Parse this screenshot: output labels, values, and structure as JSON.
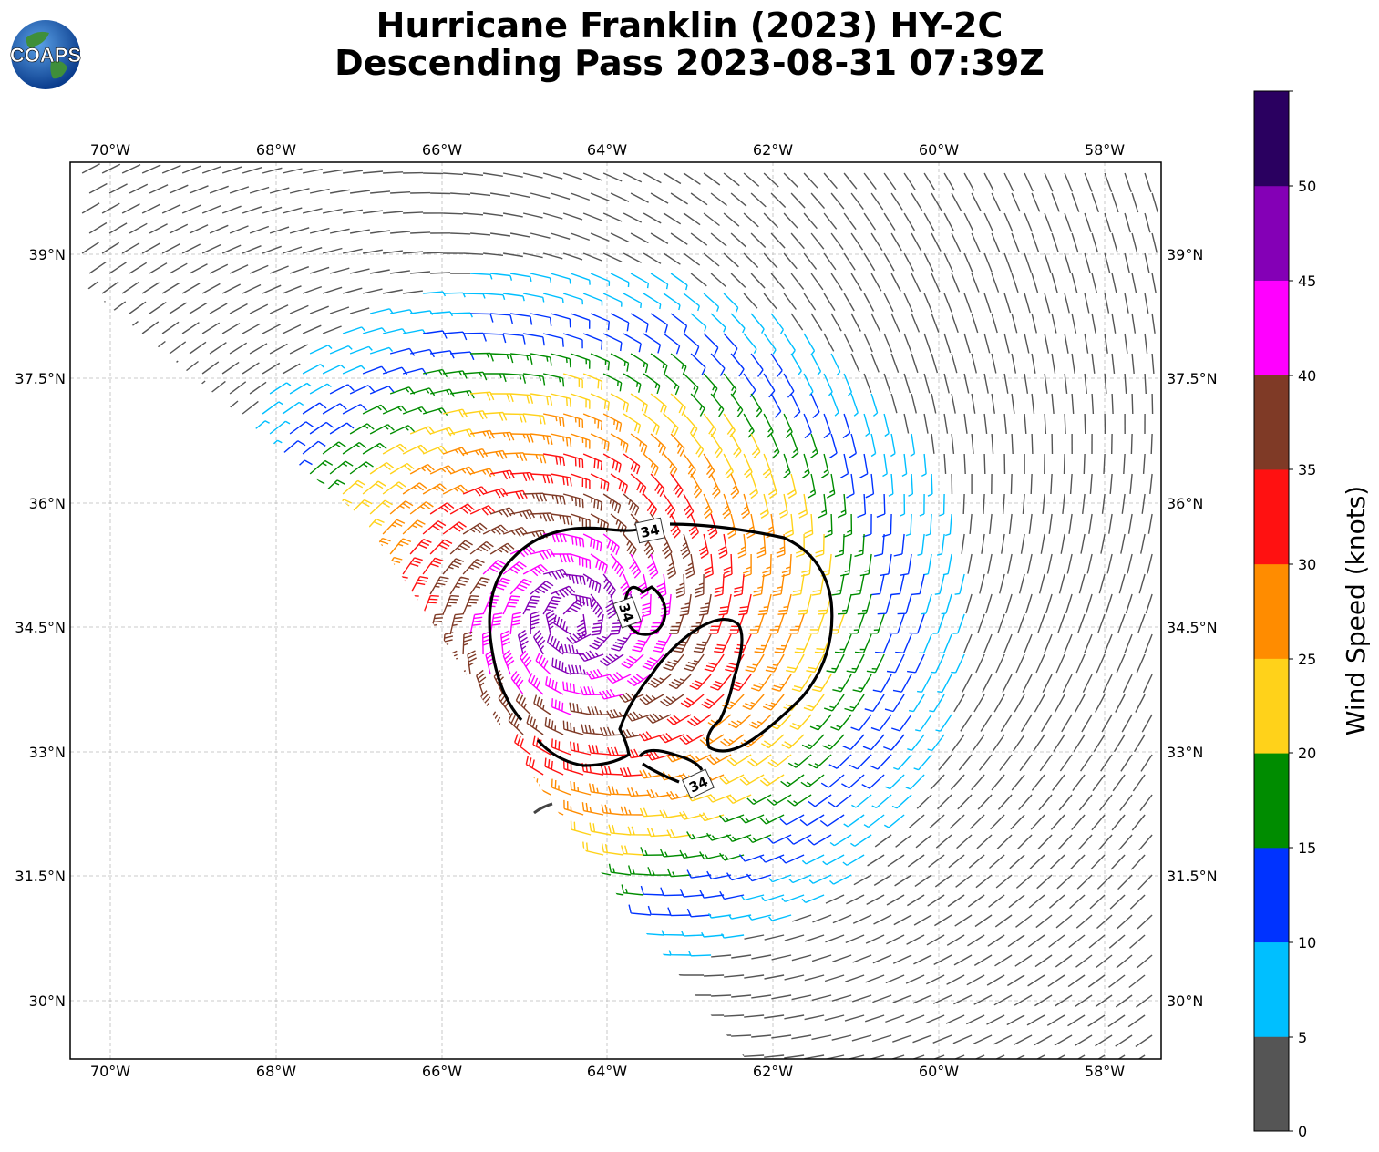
{
  "title": {
    "line1": "Hurricane Franklin (2023) HY-2C",
    "line2": "Descending Pass 2023-08-31 07:39Z"
  },
  "logo": {
    "text": "COAPS",
    "icon": "globe-logo-icon"
  },
  "map": {
    "lon_ticks": [
      "70°W",
      "68°W",
      "66°W",
      "64°W",
      "62°W",
      "60°W",
      "58°W"
    ],
    "lat_ticks": [
      "39°N",
      "37.5°N",
      "36°N",
      "34.5°N",
      "33°N",
      "31.5°N",
      "30°N"
    ],
    "contour_label": "34",
    "storm_center": {
      "lon": -64.4,
      "lat": 34.6
    },
    "grid": true
  },
  "colorbar": {
    "label": "Wind Speed (knots)",
    "ticks": [
      "0",
      "5",
      "10",
      "15",
      "20",
      "25",
      "30",
      "35",
      "40",
      "45",
      "50"
    ],
    "colors": [
      "#555555",
      "#00bfff",
      "#0033ff",
      "#008c00",
      "#ffd21a",
      "#ff8c00",
      "#ff1111",
      "#7f3a26",
      "#ff00ff",
      "#8400b6",
      "#2a0060"
    ]
  }
}
